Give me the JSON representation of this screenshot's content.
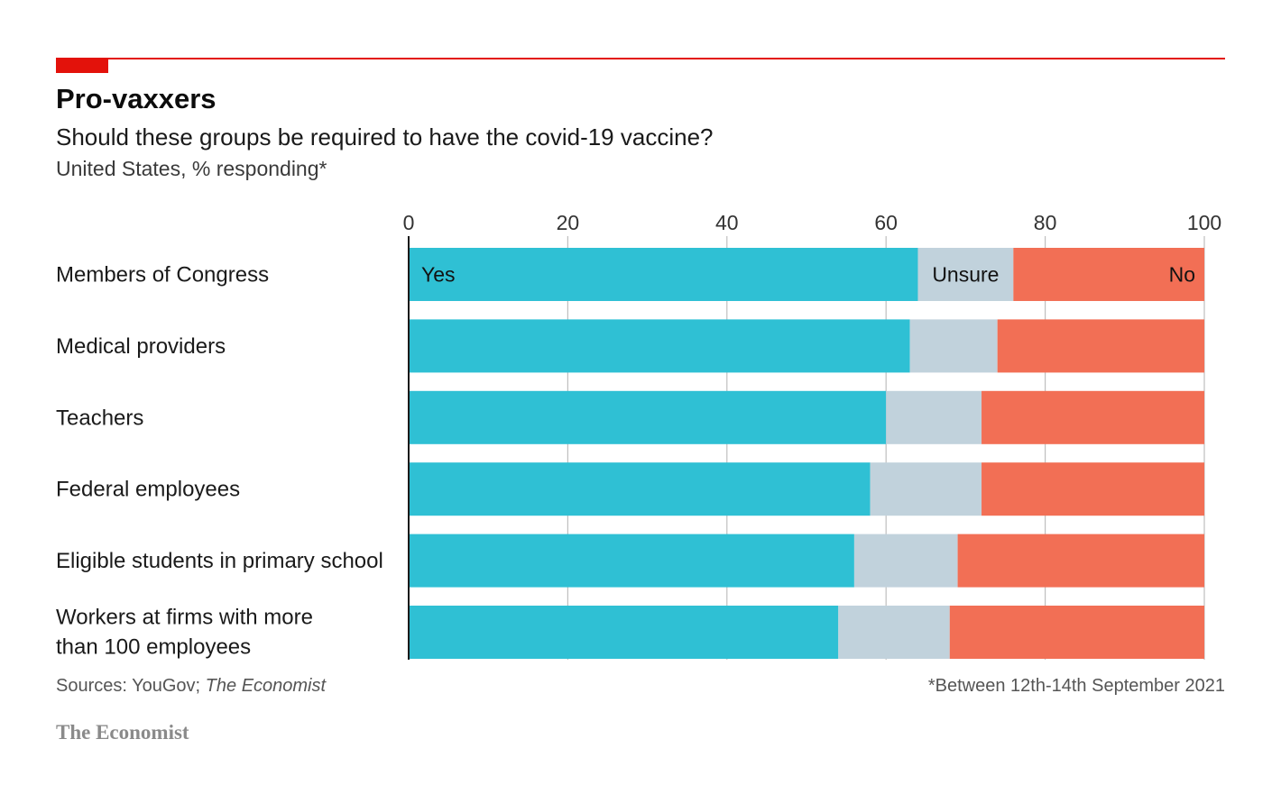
{
  "header": {
    "title": "Pro-vaxxers",
    "subtitle": "Should these groups be required to have the covid-19 vaccine?",
    "unit": "United States, % responding*"
  },
  "footer": {
    "source_prefix": "Sources: YouGov; ",
    "source_italic": "The Economist",
    "footnote": "*Between 12th-14th September 2021",
    "brand": "The Economist"
  },
  "colors": {
    "accent": "#e3120b",
    "yes": "#2fc0d4",
    "unsure": "#c1d2dc",
    "no": "#f26f55",
    "grid": "#bfbfbf"
  },
  "chart_data": {
    "type": "bar",
    "orientation": "horizontal",
    "stacked": true,
    "title": "Pro-vaxxers",
    "subtitle": "Should these groups be required to have the covid-19 vaccine?",
    "xlabel": "United States, % responding*",
    "xlim": [
      0,
      100
    ],
    "xticks": [
      0,
      20,
      40,
      60,
      80,
      100
    ],
    "grid": true,
    "categories": [
      [
        "Members of Congress"
      ],
      [
        "Medical providers"
      ],
      [
        "Teachers"
      ],
      [
        "Federal employees"
      ],
      [
        "Eligible students in primary school"
      ],
      [
        "Workers at firms with more",
        "than 100 employees"
      ]
    ],
    "series": [
      {
        "name": "Yes",
        "values": [
          64,
          63,
          60,
          58,
          56,
          54
        ]
      },
      {
        "name": "Unsure",
        "values": [
          12,
          11,
          12,
          14,
          13,
          14
        ]
      },
      {
        "name": "No",
        "values": [
          24,
          26,
          28,
          28,
          31,
          32
        ]
      }
    ]
  }
}
